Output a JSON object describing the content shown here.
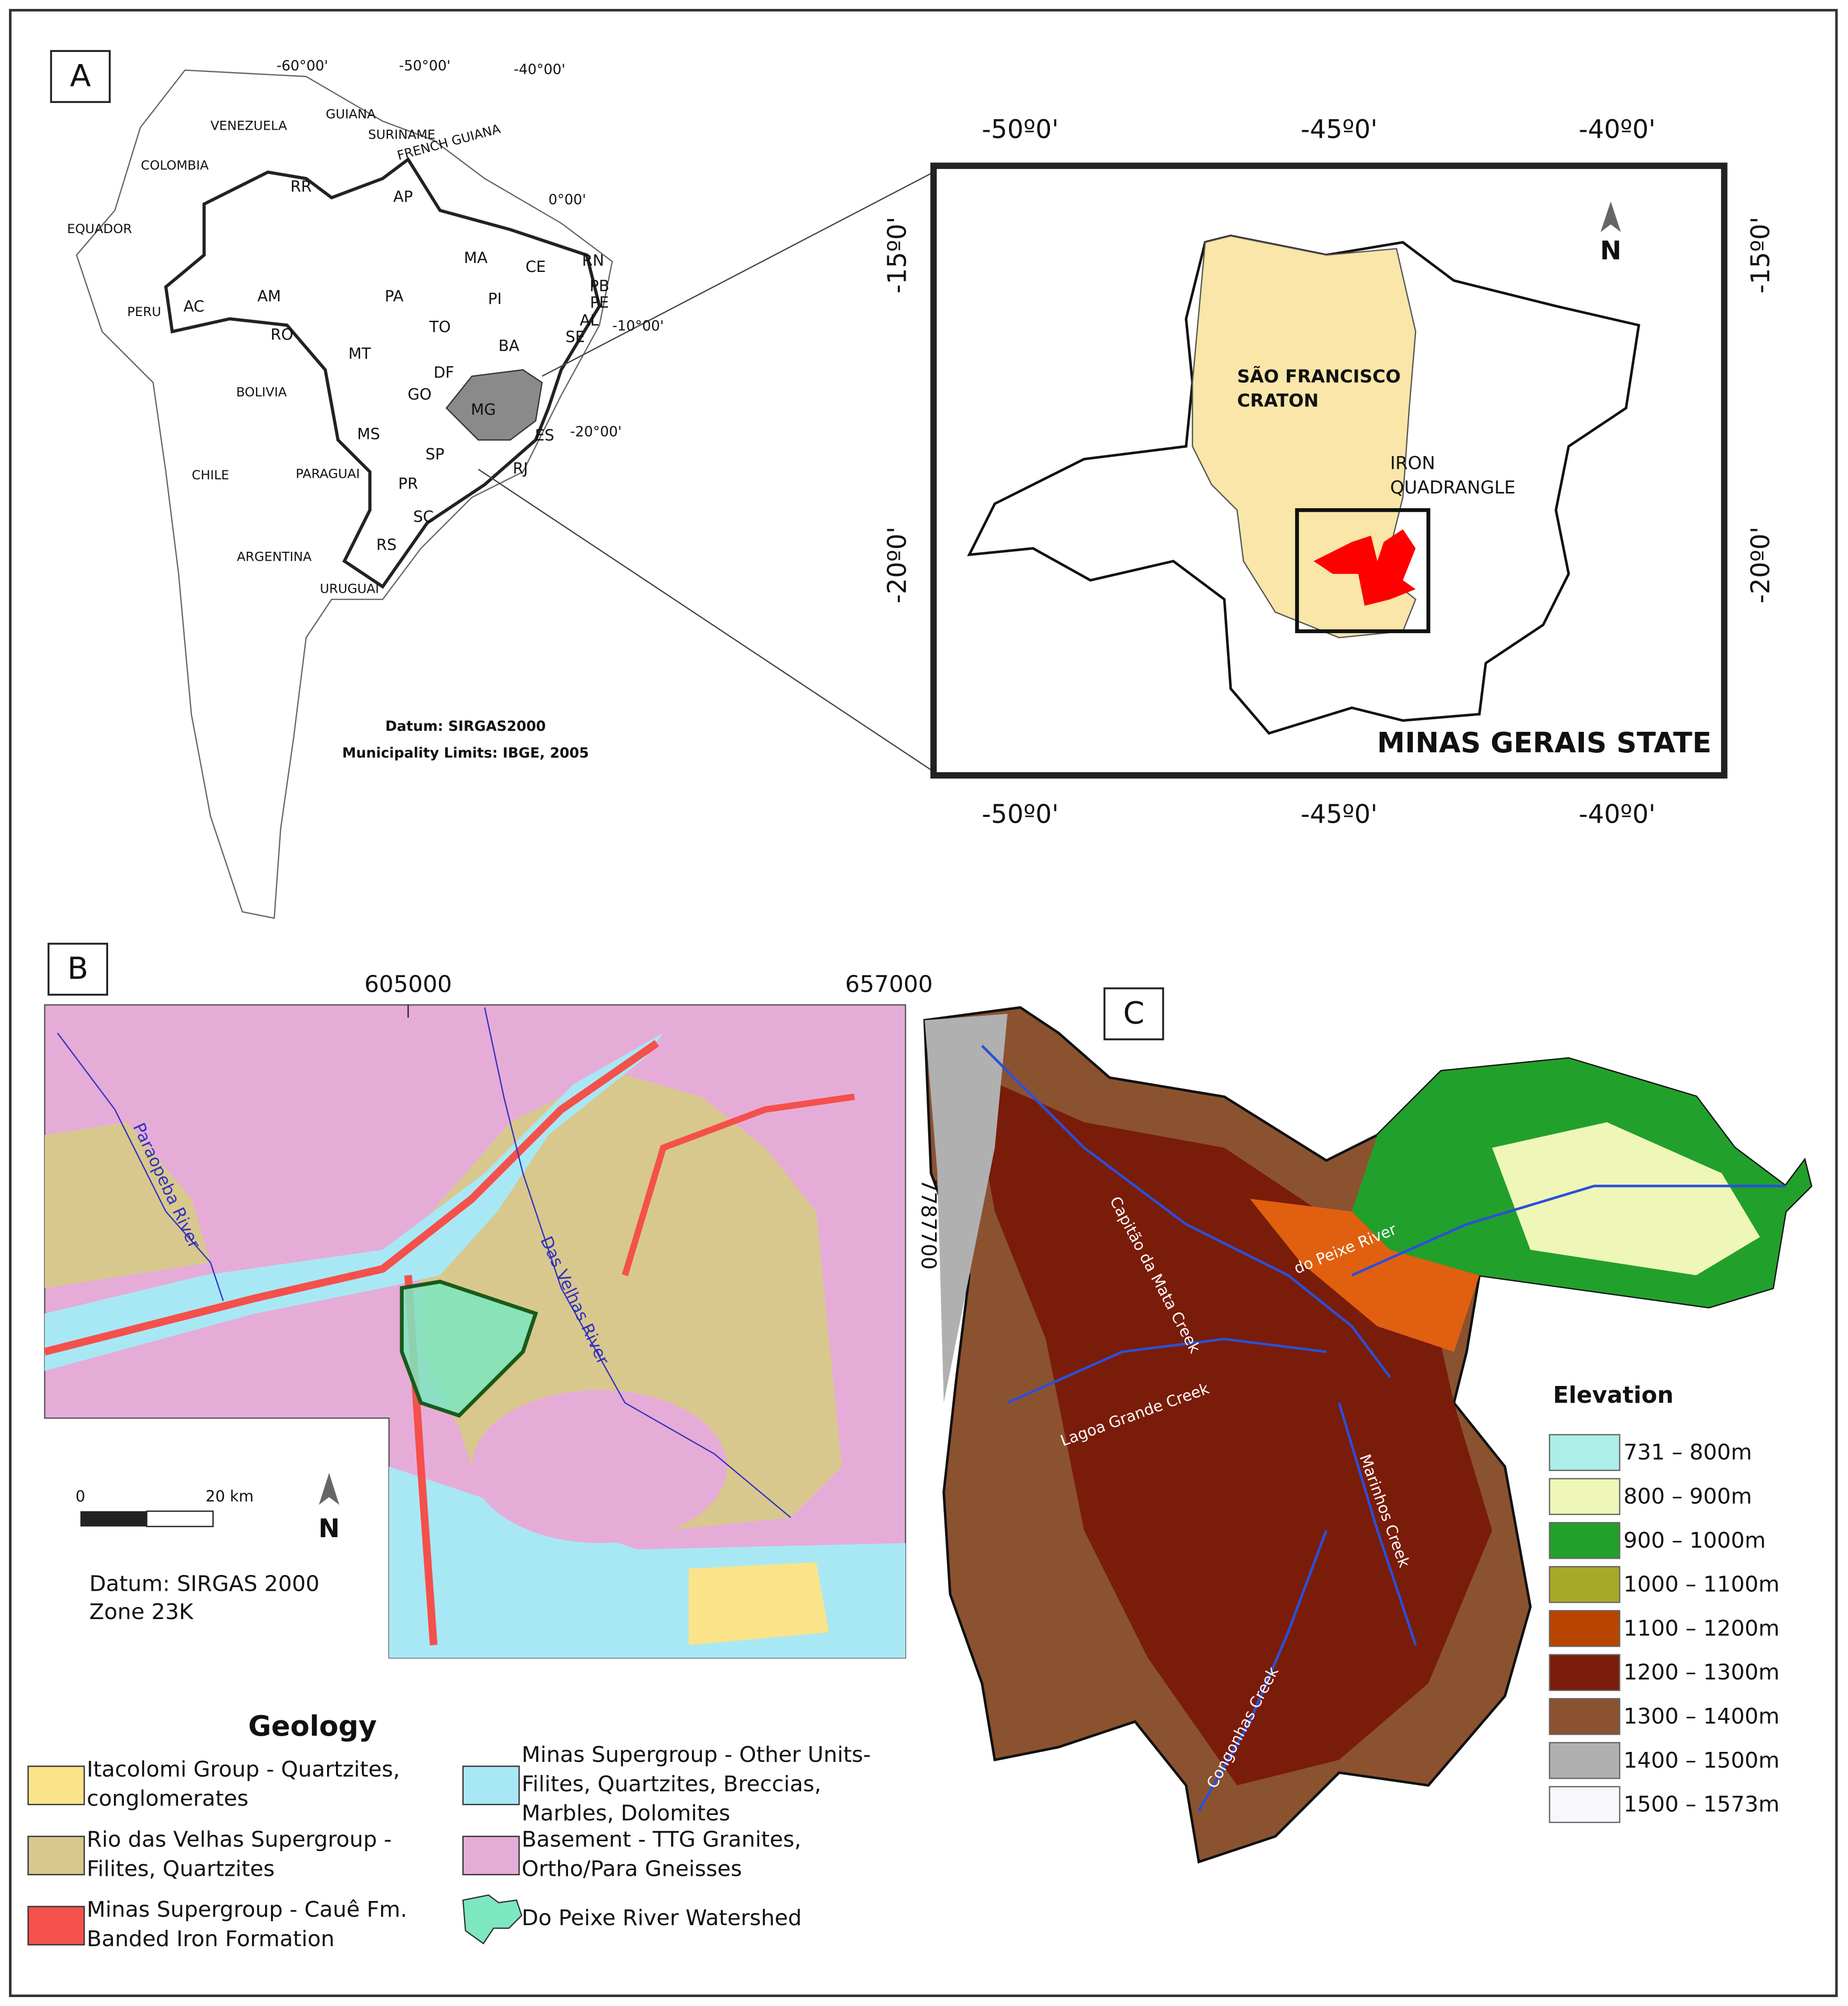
{
  "panel_a": {
    "label": "A",
    "longitudes": [
      "-60°00'",
      "-50°00'",
      "-40°00'"
    ],
    "latitudes": [
      "0°00'",
      "-10°00'",
      "-20°00'"
    ],
    "countries": [
      "VENEZUELA",
      "GUIANA",
      "SURINAME",
      "FRENCH GUIANA",
      "COLOMBIA",
      "EQUADOR",
      "PERU",
      "BOLIVIA",
      "CHILE",
      "PARAGUAI",
      "ARGENTINA",
      "URUGUAI"
    ],
    "states": [
      "RR",
      "AP",
      "AM",
      "PA",
      "MA",
      "CE",
      "RN",
      "PB",
      "PE",
      "AL",
      "SE",
      "PI",
      "AC",
      "RO",
      "TO",
      "BA",
      "MT",
      "DF",
      "GO",
      "MG",
      "MS",
      "ES",
      "SP",
      "RJ",
      "PR",
      "SC",
      "RS"
    ],
    "datum": "Datum: SIRGAS2000",
    "limits": "Municipality Limits: IBGE, 2005"
  },
  "inset": {
    "top_longitudes": [
      "-50º0'",
      "-45º0'",
      "-40º0'"
    ],
    "bottom_longitudes": [
      "-50º0'",
      "-45º0'",
      "-40º0'"
    ],
    "left_latitudes": [
      "-15º0'",
      "-20º0'"
    ],
    "right_latitudes": [
      "-15º0'",
      "-20º0'"
    ],
    "north": "N",
    "craton": [
      "SÃO FRANCISCO",
      "CRATON"
    ],
    "iron_quadrangle": [
      "IRON",
      "QUADRANGLE"
    ],
    "state": "MINAS GERAIS STATE"
  },
  "panel_b": {
    "label": "B",
    "eastings": [
      "605000",
      "657000"
    ],
    "northing": "7787700",
    "rivers": [
      "Paraopeba River",
      "Das Velhas River"
    ],
    "scale": [
      "0",
      "20 km"
    ],
    "north": "N",
    "datum": [
      "Datum: SIRGAS 2000",
      "Zone 23K"
    ],
    "legend_title": "Geology",
    "legend": [
      {
        "lines": [
          "Itacolomi Group - Quartzites,",
          "conglomerates"
        ],
        "color": "#fbe38a"
      },
      {
        "lines": [
          "Rio das Velhas Supergroup -",
          "Filites, Quartzites"
        ],
        "color": "#d8c88e"
      },
      {
        "lines": [
          "Minas Supergroup - Cauê Fm.",
          "Banded Iron Formation"
        ],
        "color": "#f4504c"
      },
      {
        "lines": [
          "Minas Supergroup - Other Units-",
          "Filites, Quartzites, Breccias,",
          "Marbles, Dolomites"
        ],
        "color": "#a8e8f4"
      },
      {
        "lines": [
          "Basement - TTG Granites,",
          "Ortho/Para Gneisses"
        ],
        "color": "#e6acd8"
      },
      {
        "lines": [
          "Do Peixe River Watershed"
        ],
        "color": "#7de8c0"
      }
    ]
  },
  "panel_c": {
    "label": "C",
    "creeks": [
      "Capitão da Mata Creek",
      "do Peixe River",
      "Lagoa Grande Creek",
      "Marinhos Creek",
      "Congonhas Creek"
    ],
    "legend_title": "Elevation",
    "classes": [
      {
        "label": "731 – 800m",
        "color": "#aeeee8"
      },
      {
        "label": "800 – 900m",
        "color": "#eef7b8"
      },
      {
        "label": "900 – 1000m",
        "color": "#22a02c"
      },
      {
        "label": "1000 – 1100m",
        "color": "#a8a828"
      },
      {
        "label": "1100 – 1200m",
        "color": "#b84400"
      },
      {
        "label": "1200 – 1300m",
        "color": "#7a1c0a"
      },
      {
        "label": "1300 – 1400m",
        "color": "#8b5230"
      },
      {
        "label": "1400 – 1500m",
        "color": "#b0b0b0"
      },
      {
        "label": "1500 – 1573m",
        "color": "#f8f8fc"
      }
    ]
  }
}
